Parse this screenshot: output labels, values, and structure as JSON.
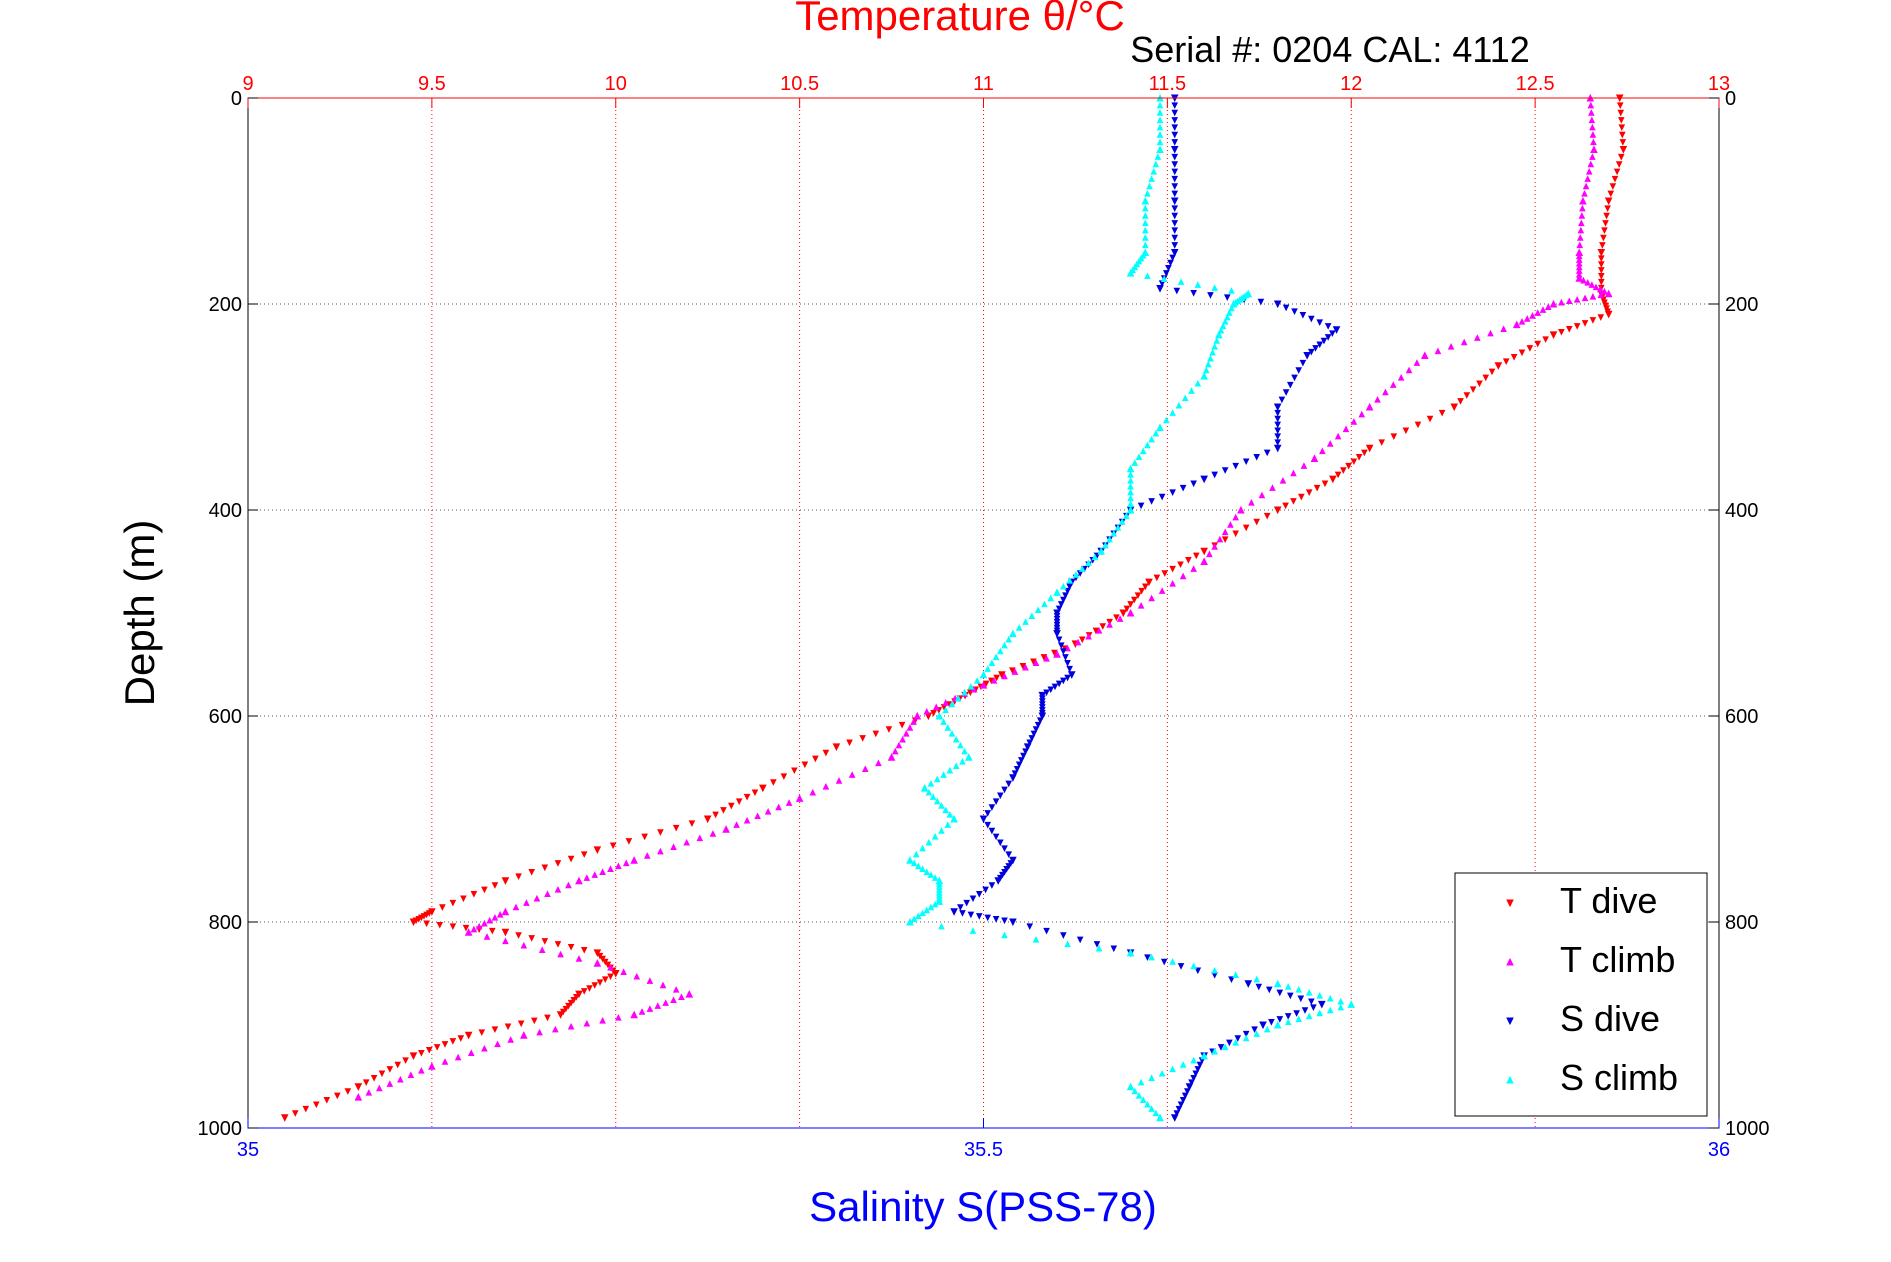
{
  "chart_data": {
    "type": "scatter",
    "title": "Temperature θ/°C",
    "subtitle": "Serial #: 0204  CAL: 4112",
    "ylabel": "Depth (m)",
    "xlabel": "Salinity S(PSS-78)",
    "y_ticks": [
      "0",
      "200",
      "400",
      "600",
      "800",
      "1000"
    ],
    "y_ticks_right": [
      "0",
      "200",
      "400",
      "600",
      "800",
      "1000"
    ],
    "top_ticks": [
      "9",
      "9.5",
      "10",
      "10.5",
      "11",
      "11.5",
      "12",
      "12.5",
      "13"
    ],
    "bottom_ticks": [
      "35",
      "35.5",
      "36"
    ],
    "ylim": [
      0,
      1000
    ],
    "y_reversed": true,
    "top_xlim": [
      9,
      13
    ],
    "bottom_xlim": [
      35,
      36
    ],
    "grid": true,
    "legend_position": "bottom-right",
    "colors": {
      "temperature_axis": "#ff0000",
      "salinity_axis": "#0000ff",
      "t_dive": "#ff0000",
      "t_climb": "#ff00ff",
      "s_dive": "#0000dd",
      "s_climb": "#00ffff"
    },
    "series": [
      {
        "name": "T dive",
        "axis": "temperature",
        "marker": "triangle-down",
        "depth": [
          0,
          50,
          100,
          150,
          190,
          210,
          230,
          260,
          300,
          340,
          370,
          400,
          440,
          470,
          500,
          530,
          560,
          580,
          600,
          630,
          670,
          700,
          730,
          760,
          790,
          800,
          810,
          830,
          850,
          870,
          890,
          910,
          930,
          960,
          990
        ],
        "value": [
          12.73,
          12.74,
          12.7,
          12.68,
          12.68,
          12.7,
          12.55,
          12.4,
          12.28,
          12.05,
          11.95,
          11.8,
          11.6,
          11.45,
          11.38,
          11.25,
          11.05,
          10.95,
          10.85,
          10.6,
          10.4,
          10.25,
          9.95,
          9.7,
          9.5,
          9.45,
          9.7,
          9.95,
          10.0,
          9.9,
          9.85,
          9.6,
          9.45,
          9.3,
          9.1
        ]
      },
      {
        "name": "T climb",
        "axis": "temperature",
        "marker": "triangle-up",
        "depth": [
          0,
          50,
          100,
          150,
          175,
          190,
          200,
          220,
          250,
          300,
          350,
          400,
          450,
          500,
          540,
          570,
          600,
          640,
          680,
          710,
          740,
          760,
          790,
          810,
          840,
          870,
          890,
          910,
          940,
          970
        ],
        "value": [
          12.65,
          12.66,
          12.63,
          12.62,
          12.62,
          12.7,
          12.55,
          12.45,
          12.2,
          12.05,
          11.9,
          11.7,
          11.6,
          11.4,
          11.2,
          11.0,
          10.82,
          10.75,
          10.5,
          10.3,
          10.05,
          9.9,
          9.7,
          9.6,
          9.95,
          10.2,
          10.05,
          9.75,
          9.5,
          9.3
        ]
      },
      {
        "name": "S dive",
        "axis": "salinity",
        "marker": "triangle-down",
        "depth": [
          0,
          50,
          100,
          150,
          185,
          200,
          225,
          250,
          300,
          340,
          370,
          400,
          440,
          470,
          500,
          520,
          560,
          580,
          600,
          630,
          660,
          700,
          740,
          760,
          790,
          800,
          830,
          860,
          880,
          900,
          930,
          960,
          990
        ],
        "value": [
          35.63,
          35.63,
          35.63,
          35.63,
          35.62,
          35.7,
          35.74,
          35.72,
          35.7,
          35.7,
          35.65,
          35.6,
          35.58,
          35.56,
          35.55,
          35.55,
          35.56,
          35.54,
          35.54,
          35.53,
          35.52,
          35.5,
          35.52,
          35.51,
          35.48,
          35.52,
          35.6,
          35.68,
          35.73,
          35.69,
          35.65,
          35.64,
          35.63
        ]
      },
      {
        "name": "S climb",
        "axis": "salinity",
        "marker": "triangle-up",
        "depth": [
          0,
          50,
          100,
          150,
          170,
          190,
          200,
          230,
          270,
          320,
          360,
          400,
          440,
          480,
          520,
          560,
          600,
          640,
          670,
          700,
          740,
          760,
          780,
          800,
          830,
          860,
          880,
          900,
          930,
          960,
          990
        ],
        "value": [
          35.62,
          35.62,
          35.61,
          35.61,
          35.6,
          35.68,
          35.67,
          35.66,
          35.65,
          35.62,
          35.6,
          35.6,
          35.58,
          35.55,
          35.52,
          35.5,
          35.47,
          35.49,
          35.46,
          35.48,
          35.45,
          35.47,
          35.47,
          35.45,
          35.6,
          35.7,
          35.75,
          35.7,
          35.65,
          35.6,
          35.62
        ]
      }
    ],
    "legend": [
      {
        "label": "T dive",
        "color": "#ff0000",
        "marker": "triangle-down"
      },
      {
        "label": "T climb",
        "color": "#ff00ff",
        "marker": "triangle-up"
      },
      {
        "label": "S dive",
        "color": "#0000dd",
        "marker": "triangle-down"
      },
      {
        "label": "S climb",
        "color": "#00ffff",
        "marker": "triangle-up"
      }
    ]
  }
}
